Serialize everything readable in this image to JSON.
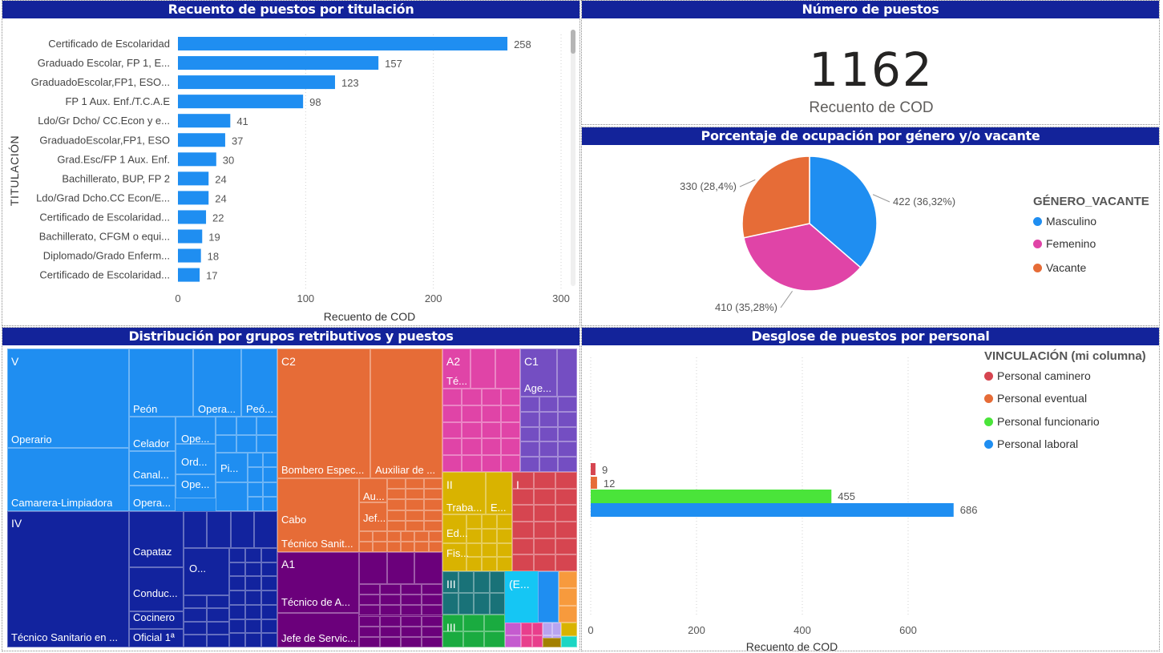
{
  "panels": {
    "titulacion": {
      "title": "Recuento de puestos por titulación",
      "chart_data": {
        "type": "bar",
        "orientation": "horizontal",
        "ylabel": "TITULACIÓN",
        "xlabel": "Recuento de COD",
        "xlim": [
          0,
          300
        ],
        "xticks": [
          "0",
          "100",
          "200",
          "300"
        ],
        "bar_color": "#1f8ef1",
        "categories": [
          "Certificado de Escolaridad",
          "Graduado Escolar, FP 1, E...",
          "GraduadoEscolar,FP1, ESO...",
          "FP 1 Aux. Enf./T.C.A.E",
          "Ldo/Gr Dcho/ CC.Econ y e...",
          "GraduadoEscolar,FP1, ESO",
          "Grad.Esc/FP 1 Aux. Enf.",
          "Bachillerato, BUP, FP 2",
          "Ldo/Grad Dcho.CC Econ/E...",
          "Certificado de Escolaridad...",
          "Bachillerato, CFGM o equi...",
          "Diplomado/Grado Enferm...",
          "Certificado de Escolaridad..."
        ],
        "values": [
          258,
          157,
          123,
          98,
          41,
          37,
          30,
          24,
          24,
          22,
          19,
          18,
          17
        ]
      }
    },
    "numero": {
      "title": "Número de puestos",
      "value": "1162",
      "label": "Recuento de COD"
    },
    "ocupacion": {
      "title": "Porcentaje de ocupación por género y/o vacante",
      "legend_title": "GÉNERO_VACANTE",
      "chart_data": {
        "type": "pie",
        "slices": [
          {
            "name": "Masculino",
            "value": 422,
            "label": "422 (36,32%)",
            "color": "#1f8ef1"
          },
          {
            "name": "Femenino",
            "value": 410,
            "label": "410 (35,28%)",
            "color": "#e044a7"
          },
          {
            "name": "Vacante",
            "value": 330,
            "label": "330 (28,4%)",
            "color": "#e66c37"
          }
        ]
      }
    },
    "treemap": {
      "title": "Distribución por grupos retributivos y puestos",
      "groups": [
        {
          "name": "V",
          "color": "#1f8ef1",
          "items": [
            "Operario",
            "Camarera-Limpiadora",
            "Peón",
            "Opera...",
            "Peó...",
            "Celador",
            "Ope...",
            "Ord...",
            "Pi...",
            "Canal...",
            "Ope...",
            "Opera..."
          ]
        },
        {
          "name": "IV",
          "color": "#12239e",
          "items": [
            "Capataz",
            "O...",
            "Conduc...",
            "Cocinero",
            "Técnico Sanitario en ...",
            "Oficial 1ª"
          ]
        },
        {
          "name": "C2",
          "color": "#e66c37",
          "items": [
            "Bombero Espec...",
            "Auxiliar de ...",
            "Cabo",
            "Au...",
            "Jef...",
            "Técnico Sanit..."
          ]
        },
        {
          "name": "A1",
          "color": "#6b007b",
          "items": [
            "Técnico de A...",
            "Jefe de Servic..."
          ]
        },
        {
          "name": "A2",
          "color": "#e044a7",
          "items": [
            "Té..."
          ]
        },
        {
          "name": "C1",
          "color": "#744ec2",
          "items": [
            "Age..."
          ]
        },
        {
          "name": "II",
          "color": "#d9b300",
          "items": [
            "Traba...",
            "E...",
            "Ed...",
            "Fis..."
          ]
        },
        {
          "name": "I",
          "color": "#d64550",
          "items": []
        },
        {
          "name": "III",
          "color": "#197278",
          "items": []
        },
        {
          "name": "(E...",
          "color": "#1aab40",
          "items": []
        },
        {
          "name": "III",
          "color": "#15c6f4",
          "items": []
        }
      ]
    },
    "desglose": {
      "title": "Desglose de puestos por personal",
      "legend_title": "VINCULACIÓN (mi columna)",
      "chart_data": {
        "type": "bar",
        "orientation": "horizontal",
        "xlabel": "Recuento de COD",
        "xlim": [
          0,
          700
        ],
        "xticks": [
          "0",
          "200",
          "400",
          "600"
        ],
        "series": [
          {
            "name": "Personal caminero",
            "value": 9,
            "color": "#d64550"
          },
          {
            "name": "Personal eventual",
            "value": 12,
            "color": "#e66c37"
          },
          {
            "name": "Personal funcionario",
            "value": 455,
            "color": "#4ae43a"
          },
          {
            "name": "Personal laboral",
            "value": 686,
            "color": "#1f8ef1"
          }
        ]
      }
    }
  }
}
